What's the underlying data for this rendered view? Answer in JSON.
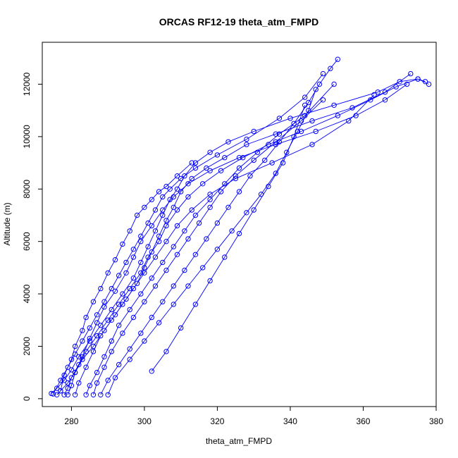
{
  "chart_data": {
    "type": "scatter",
    "title": "ORCAS RF12-19 theta_atm_FMPD",
    "xlabel": "theta_atm_FMPD",
    "ylabel": "Altitude (m)",
    "xlim": [
      272,
      380
    ],
    "ylim": [
      -300,
      13600
    ],
    "xticks": [
      280,
      300,
      320,
      340,
      360,
      380
    ],
    "yticks": [
      0,
      2000,
      4000,
      6000,
      8000,
      10000,
      12000
    ],
    "grid": false,
    "color": "#0000ff",
    "marker": "open-circle",
    "series": [
      {
        "x": [
          274.5,
          276,
          278,
          280,
          282,
          285,
          288,
          291,
          294,
          297,
          299,
          301,
          303,
          305,
          307,
          309,
          311,
          314,
          318,
          323,
          330,
          340,
          352,
          364,
          370,
          375,
          377
        ],
        "y": [
          200,
          400,
          700,
          1100,
          1600,
          2200,
          2800,
          3400,
          4000,
          4600,
          5200,
          5800,
          6400,
          7000,
          7600,
          8000,
          8500,
          9000,
          9400,
          9800,
          10200,
          10700,
          11200,
          11700,
          12100,
          12200,
          12100
        ]
      },
      {
        "x": [
          276,
          277,
          279,
          281,
          283,
          286,
          289,
          292,
          295,
          298,
          300,
          302,
          304,
          306,
          308,
          310,
          313,
          317,
          322,
          328,
          336,
          346,
          357,
          366,
          373
        ],
        "y": [
          150,
          300,
          600,
          1000,
          1500,
          2000,
          2600,
          3200,
          3800,
          4400,
          5000,
          5600,
          6200,
          6800,
          7300,
          7900,
          8400,
          8800,
          9200,
          9700,
          10100,
          10600,
          11100,
          11700,
          12400
        ]
      },
      {
        "x": [
          278,
          279,
          280,
          282,
          284,
          287,
          290,
          293,
          296,
          299,
          301,
          304,
          306,
          309,
          312,
          316,
          321,
          327,
          334,
          343,
          353,
          362,
          369,
          375,
          378
        ],
        "y": [
          150,
          400,
          800,
          1300,
          1800,
          2400,
          3000,
          3600,
          4200,
          4800,
          5400,
          6000,
          6600,
          7200,
          7700,
          8200,
          8700,
          9200,
          9700,
          10200,
          10800,
          11400,
          11900,
          12200,
          12000
        ]
      },
      {
        "x": [
          279,
          280,
          281,
          283,
          285,
          287,
          289,
          292,
          295,
          297,
          299,
          302,
          305,
          308,
          312,
          318,
          326,
          336,
          347,
          358,
          366,
          372
        ],
        "y": [
          150,
          500,
          1000,
          1600,
          2300,
          2900,
          3500,
          4100,
          4800,
          5400,
          6000,
          6600,
          7200,
          7700,
          8200,
          8700,
          9200,
          9700,
          10200,
          10800,
          11400,
          12000
        ]
      },
      {
        "x": [
          281,
          282,
          284,
          286,
          288,
          291,
          294,
          297,
          300,
          303,
          306,
          309,
          313,
          318,
          325,
          335,
          346,
          356,
          363
        ],
        "y": [
          150,
          600,
          1200,
          1800,
          2400,
          3000,
          3600,
          4200,
          4800,
          5400,
          6000,
          6600,
          7200,
          7800,
          8400,
          9000,
          9700,
          10600,
          11600
        ]
      },
      {
        "x": [
          284,
          285,
          287,
          289,
          291,
          293,
          296,
          299,
          302,
          305,
          308,
          311,
          314,
          318,
          322,
          326,
          331,
          337,
          344,
          352
        ],
        "y": [
          150,
          500,
          1000,
          1600,
          2200,
          2800,
          3400,
          4000,
          4600,
          5200,
          5800,
          6400,
          7000,
          7600,
          8200,
          8800,
          9400,
          10100,
          10800,
          12000
        ]
      },
      {
        "x": [
          286,
          287,
          289,
          291,
          294,
          297,
          300,
          303,
          306,
          309,
          312,
          315,
          318,
          321,
          325,
          330,
          336,
          343,
          349
        ],
        "y": [
          150,
          600,
          1200,
          1800,
          2500,
          3100,
          3700,
          4300,
          4900,
          5500,
          6100,
          6700,
          7300,
          7900,
          8500,
          9100,
          9800,
          10600,
          11400
        ]
      },
      {
        "x": [
          288,
          290,
          293,
          296,
          299,
          302,
          305,
          308,
          311,
          314,
          317,
          320,
          323,
          326,
          329,
          333,
          337,
          341,
          345,
          348,
          351,
          353
        ],
        "y": [
          150,
          700,
          1300,
          1900,
          2500,
          3100,
          3700,
          4300,
          4900,
          5500,
          6100,
          6700,
          7300,
          7900,
          8500,
          9100,
          9800,
          10500,
          11300,
          12000,
          12600,
          12950
        ]
      },
      {
        "x": [
          290,
          292,
          296,
          300,
          304,
          308,
          312,
          316,
          320,
          324,
          328,
          332,
          336,
          339,
          342,
          345,
          347
        ],
        "y": [
          150,
          800,
          1500,
          2200,
          2900,
          3600,
          4300,
          5000,
          5700,
          6400,
          7100,
          7800,
          8600,
          9400,
          10200,
          11000,
          11800
        ]
      },
      {
        "x": [
          275,
          277,
          279,
          281,
          283,
          285,
          287,
          289,
          291,
          293,
          295,
          297,
          299,
          301,
          303,
          305,
          307,
          310,
          314,
          320,
          328,
          337,
          344,
          349
        ],
        "y": [
          180,
          700,
          1200,
          1700,
          2200,
          2700,
          3200,
          3700,
          4200,
          4700,
          5200,
          5700,
          6200,
          6700,
          7200,
          7700,
          8000,
          8400,
          8800,
          9300,
          9900,
          10700,
          11500,
          12400
        ]
      },
      {
        "x": [
          277,
          278,
          280,
          281,
          283,
          284,
          286,
          288,
          290,
          292,
          294,
          296,
          298,
          300,
          302,
          304,
          306,
          309,
          313
        ],
        "y": [
          300,
          900,
          1500,
          2000,
          2600,
          3100,
          3700,
          4200,
          4800,
          5300,
          5900,
          6400,
          7000,
          7300,
          7600,
          7900,
          8100,
          8500,
          9000
        ]
      },
      {
        "x": [
          302,
          306,
          310,
          314,
          318,
          322,
          326,
          330,
          334,
          338,
          341,
          344
        ],
        "y": [
          1050,
          1800,
          2700,
          3600,
          4500,
          5400,
          6300,
          7200,
          8100,
          9000,
          10000,
          11200
        ]
      }
    ]
  }
}
